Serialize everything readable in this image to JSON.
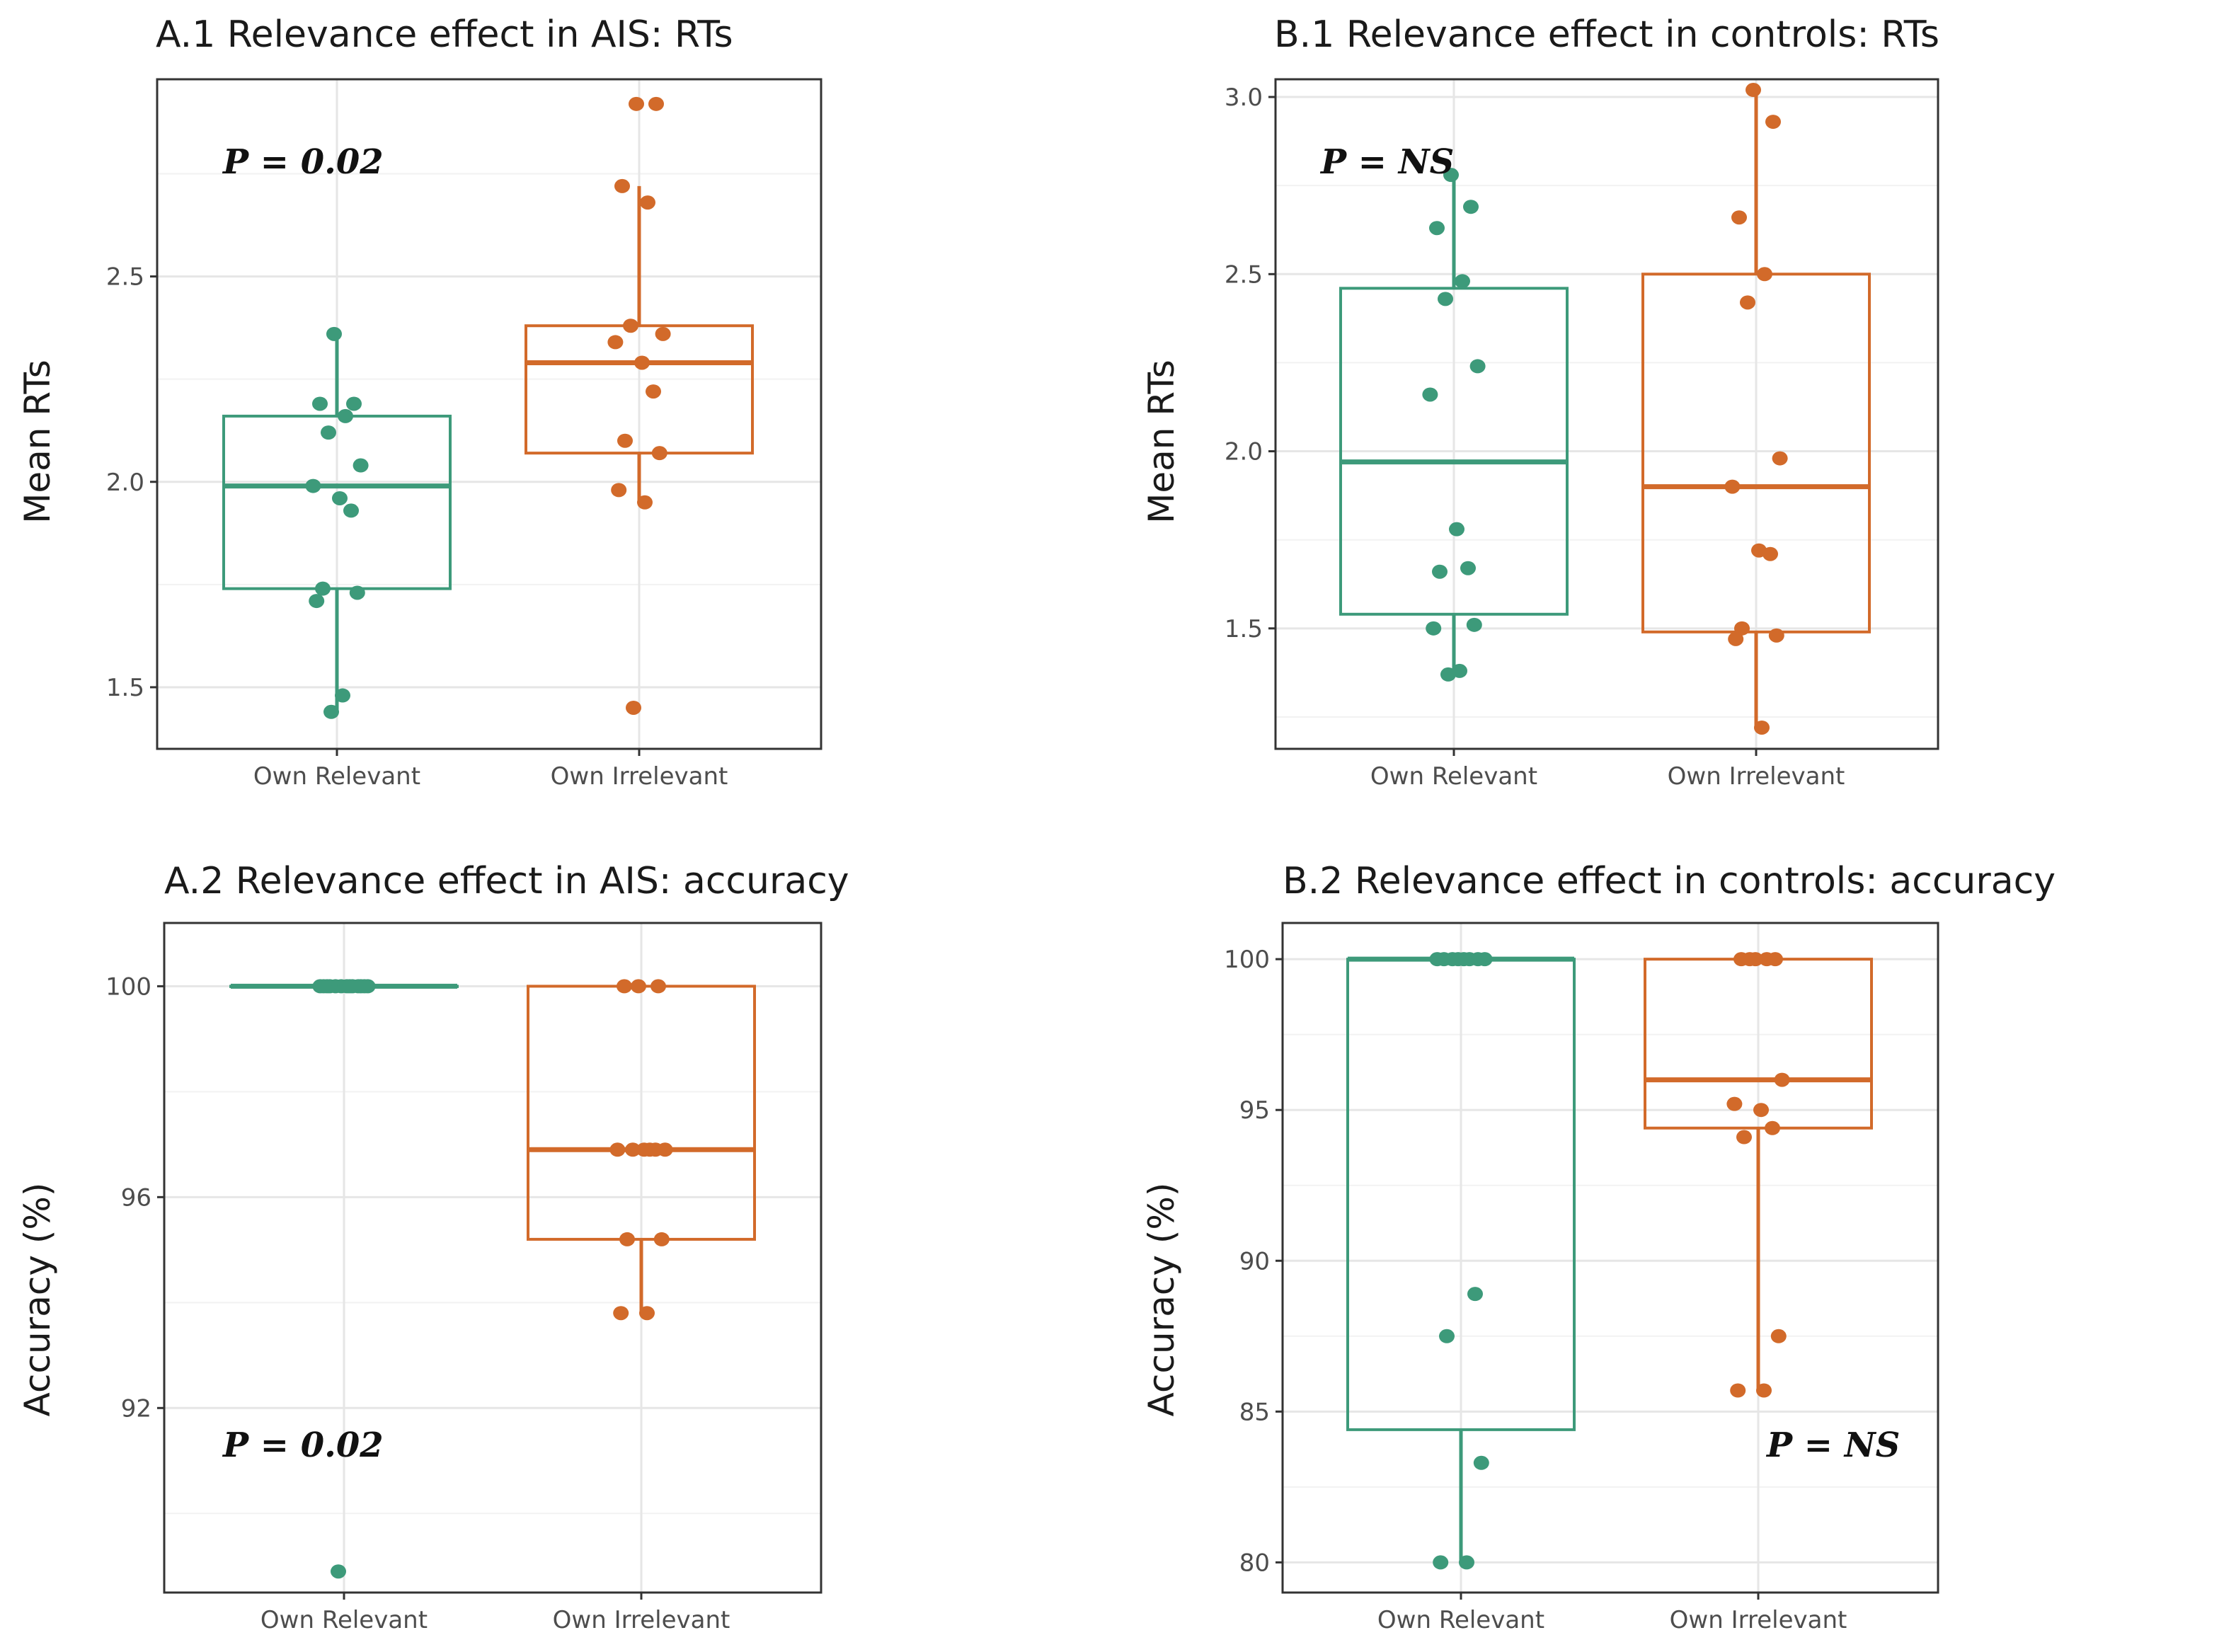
{
  "colors": {
    "relevant": "#3d9a7a",
    "irrelevant": "#d26a2a"
  },
  "chart_data": [
    {
      "id": "A1",
      "type": "box",
      "title": "A.1 Relevance effect in AIS: RTs",
      "ylabel": "Mean RTs",
      "xlabel": "",
      "ylim": [
        1.35,
        2.98
      ],
      "yticks": [
        1.5,
        2.0,
        2.5
      ],
      "yticklabels": [
        "1.5",
        "2.0",
        "2.5"
      ],
      "categories": [
        "Own Relevant",
        "Own Irrelevant"
      ],
      "pvalue": "P = 0.02",
      "pvalue_position": "top-left",
      "series": [
        {
          "name": "Own Relevant",
          "box": {
            "min": 1.44,
            "q1": 1.74,
            "median": 1.99,
            "q3": 2.16,
            "max": 2.36
          },
          "points": [
            2.36,
            2.19,
            2.19,
            2.16,
            2.12,
            2.04,
            1.99,
            1.96,
            1.93,
            1.74,
            1.73,
            1.71,
            1.48,
            1.44
          ]
        },
        {
          "name": "Own Irrelevant",
          "box": {
            "min": 1.95,
            "q1": 2.07,
            "median": 2.29,
            "q3": 2.38,
            "max": 2.72
          },
          "points": [
            2.92,
            2.92,
            2.72,
            2.68,
            2.38,
            2.36,
            2.34,
            2.29,
            2.22,
            2.1,
            2.07,
            1.98,
            1.95,
            1.45
          ]
        }
      ]
    },
    {
      "id": "B1",
      "type": "box",
      "title": "B.1  Relevance effect in controls: RTs",
      "ylabel": "Mean RTs",
      "xlabel": "",
      "ylim": [
        1.16,
        3.05
      ],
      "yticks": [
        1.5,
        2.0,
        2.5,
        3.0
      ],
      "yticklabels": [
        "1.5",
        "2.0",
        "2.5",
        "3.0"
      ],
      "categories": [
        "Own Relevant",
        "Own Irrelevant"
      ],
      "pvalue": "P = NS",
      "pvalue_position": "top-left",
      "series": [
        {
          "name": "Own Relevant",
          "box": {
            "min": 1.38,
            "q1": 1.54,
            "median": 1.97,
            "q3": 2.46,
            "max": 2.78
          },
          "points": [
            2.78,
            2.69,
            2.63,
            2.48,
            2.43,
            2.24,
            2.16,
            1.78,
            1.67,
            1.66,
            1.51,
            1.5,
            1.38,
            1.37
          ]
        },
        {
          "name": "Own Irrelevant",
          "box": {
            "min": 1.22,
            "q1": 1.49,
            "median": 1.9,
            "q3": 2.5,
            "max": 3.02
          },
          "points": [
            3.02,
            2.93,
            2.66,
            2.5,
            2.42,
            1.98,
            1.9,
            1.72,
            1.71,
            1.5,
            1.48,
            1.47,
            1.22
          ]
        }
      ]
    },
    {
      "id": "A2",
      "type": "box",
      "title": "A.2 Relevance effect in AIS: accuracy",
      "ylabel": "Accuracy (%)",
      "xlabel": "",
      "ylim": [
        88.5,
        101.2
      ],
      "yticks": [
        92,
        96,
        100
      ],
      "yticklabels": [
        "92",
        "96",
        "100"
      ],
      "categories": [
        "Own Relevant",
        "Own Irrelevant"
      ],
      "pvalue": "P = 0.02",
      "pvalue_position": "bottom-left",
      "series": [
        {
          "name": "Own Relevant",
          "box": {
            "min": 100,
            "q1": 100,
            "median": 100,
            "q3": 100,
            "max": 100
          },
          "points": [
            100,
            100,
            100,
            100,
            100,
            100,
            100,
            100,
            100,
            100,
            100,
            100,
            100,
            88.9
          ]
        },
        {
          "name": "Own Irrelevant",
          "box": {
            "min": 93.8,
            "q1": 95.2,
            "median": 96.9,
            "q3": 100,
            "max": 100
          },
          "points": [
            100,
            100,
            100,
            96.9,
            96.9,
            96.9,
            96.9,
            96.9,
            96.9,
            95.2,
            95.2,
            93.8,
            93.8
          ]
        }
      ]
    },
    {
      "id": "B2",
      "type": "box",
      "title": "B.2  Relevance effect in controls: accuracy",
      "ylabel": "Accuracy (%)",
      "xlabel": "",
      "ylim": [
        79.0,
        101.2
      ],
      "yticks": [
        80,
        85,
        90,
        95,
        100
      ],
      "yticklabels": [
        "80",
        "85",
        "90",
        "95",
        "100"
      ],
      "categories": [
        "Own Relevant",
        "Own Irrelevant"
      ],
      "pvalue": "P = NS",
      "pvalue_position": "bottom-right",
      "series": [
        {
          "name": "Own Relevant",
          "box": {
            "min": 80,
            "q1": 84.4,
            "median": 100,
            "q3": 100,
            "max": 100
          },
          "points": [
            100,
            100,
            100,
            100,
            100,
            100,
            100,
            100,
            88.9,
            87.5,
            83.3,
            80,
            80
          ]
        },
        {
          "name": "Own Irrelevant",
          "box": {
            "min": 85.7,
            "q1": 94.4,
            "median": 96.0,
            "q3": 100,
            "max": 100
          },
          "points": [
            100,
            100,
            100,
            100,
            100,
            96.0,
            95.2,
            95.0,
            94.4,
            94.1,
            87.5,
            85.7,
            85.7
          ]
        }
      ]
    }
  ]
}
